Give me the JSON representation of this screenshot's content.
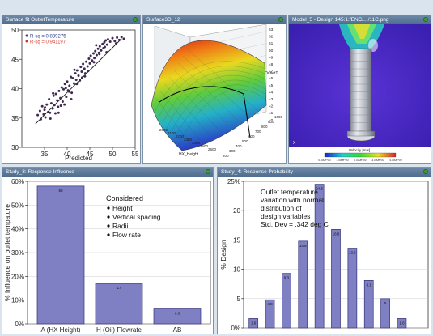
{
  "panels": {
    "scatter": {
      "title": "Surface fit OutletTemperature"
    },
    "surface": {
      "title": "Surface3D_12"
    },
    "render": {
      "title": "Model_5 - Design 145:1:/ENC/.../11C.png"
    },
    "bar1": {
      "title": "Study_3: Response Influence"
    },
    "bar2": {
      "title": "Study_4: Response Probability"
    }
  },
  "colors": {
    "bar": "#7f7fc4",
    "barEdge": "#34347a",
    "titlebar": "#5b7899",
    "background": "#d9e4ee"
  },
  "charts": {
    "scatter": {
      "legend": [
        "R-sq = 0.839275",
        "R-sq = 0.941197"
      ],
      "legendColors": [
        "#2a3c8f",
        "#d23b2b"
      ]
    },
    "surface": {
      "zticks": [
        "53",
        "52",
        "51",
        "50",
        "49",
        "48",
        "47",
        "46",
        "45",
        "44",
        "43",
        "42",
        "41",
        "40"
      ],
      "zlabel": "OutletT",
      "xticks": [
        "2000",
        "2100",
        "2200",
        "2300",
        "2400",
        "2500",
        "2600"
      ],
      "xlabel": "HX_Height",
      "yticks": [
        "200",
        "300",
        "400",
        "500",
        "600",
        "700",
        "800",
        "900",
        "1000"
      ]
    },
    "render": {
      "colorbar_label": "Velocity [m/s]",
      "colorbar_ticks": [
        "0.000e+00",
        "1.000e+00",
        "2.000e+00",
        "3.000e+00",
        "4.000e+00"
      ],
      "axis_label": "X"
    }
  },
  "chart_data": [
    {
      "type": "scatter",
      "xlabel": "Predicted",
      "ylabel": "",
      "xlim": [
        30,
        55
      ],
      "ylim": [
        30,
        50
      ],
      "xticks": [
        35,
        40,
        45,
        50,
        55
      ],
      "yticks": [
        30,
        35,
        40,
        45,
        50
      ],
      "series": [
        {
          "x": [
            33.5,
            34,
            34.2,
            34.5,
            34.8,
            35,
            35.2,
            35.5,
            35.8,
            36,
            36.2,
            36.5,
            36.8,
            37,
            37.2,
            37.5,
            37.8,
            38,
            38.2,
            38.5,
            38.8,
            39,
            39.2,
            39.5,
            39.8,
            40,
            40.2,
            40.5,
            40.8,
            41,
            41.2,
            41.5,
            41.8,
            42,
            42.2,
            42.5,
            42.8,
            43,
            43.2,
            43.5,
            43.8,
            44,
            44.2,
            44.5,
            44.8,
            45,
            45.2,
            45.5,
            45.8,
            46,
            46.2,
            46.5,
            46.8,
            47,
            47.2,
            47.5,
            47.8,
            48,
            48.2,
            48.5,
            48.8,
            49,
            49.5,
            50,
            50.5,
            51,
            51.5,
            52,
            52.5,
            36.3,
            37.4,
            38.6,
            39.7,
            40.9,
            42.1,
            43.3,
            44.6,
            45.9,
            47.1,
            48.3,
            35.1,
            36.9,
            39.4,
            41.6,
            43.9,
            46.4,
            48.7,
            50.8,
            38.1,
            40.4
          ],
          "y": [
            35.5,
            36.2,
            34.8,
            37,
            35.6,
            36.4,
            35.1,
            37.3,
            36,
            38.2,
            35.9,
            37.5,
            36.6,
            38.8,
            37.2,
            39.1,
            38,
            36.9,
            39.6,
            38.4,
            40.2,
            37.8,
            39.9,
            40.8,
            38.6,
            41.2,
            39.7,
            40.5,
            42,
            39.3,
            41.8,
            40.9,
            42.6,
            41.5,
            43.1,
            42.2,
            41.4,
            43.7,
            42.9,
            44.2,
            43.4,
            42.6,
            44.6,
            43.8,
            45.1,
            44.3,
            45.6,
            44.8,
            46,
            45.2,
            46.4,
            45.7,
            46.8,
            46.1,
            47.2,
            46.5,
            47.6,
            46.9,
            47.9,
            48.2,
            47.5,
            48.4,
            48,
            48.6,
            48.1,
            48.7,
            48.3,
            48.8,
            48.5,
            34.9,
            35.8,
            37.1,
            40.1,
            38.2,
            40.8,
            41.9,
            43,
            44.5,
            45.9,
            47.1,
            36.8,
            39.2,
            37.3,
            43.2,
            42.1,
            47.4,
            46.2,
            47.7,
            35.9,
            39.5
          ]
        }
      ],
      "fit_line": {
        "x": [
          33,
          52
        ],
        "y": [
          34,
          48.5
        ]
      }
    },
    {
      "type": "bar",
      "categories": [
        "A (HX Height)",
        "H (Oil) Flowrate",
        "AB"
      ],
      "values": [
        58,
        17,
        6.3
      ],
      "data_labels": [
        "58",
        "17",
        "6.3"
      ],
      "ylabel": "% Influence on outlet tempature",
      "ylim": [
        0,
        60
      ],
      "yticks": [
        0,
        10,
        20,
        30,
        40,
        50,
        60
      ],
      "ytick_labels": [
        "0%",
        "10%",
        "20%",
        "30%",
        "40%",
        "50%",
        "60%"
      ],
      "annotation": {
        "title": "Considered",
        "items": [
          "Height",
          "Vertical spacing",
          "Radii",
          "Flow rate"
        ]
      }
    },
    {
      "type": "bar",
      "categories": [
        "",
        "",
        "",
        "",
        "",
        "",
        "",
        "",
        "",
        "",
        ""
      ],
      "values": [
        1.6,
        4.8,
        9.3,
        14.8,
        24.5,
        16.8,
        13.6,
        8.1,
        5,
        1.6,
        0
      ],
      "data_labels": [
        "1.6",
        "4.8",
        "9.3",
        "14.8",
        "24.5",
        "16.8",
        "13.6",
        "8.1",
        "5",
        "1.6",
        ""
      ],
      "ylabel": "% Design",
      "ylim": [
        0,
        25
      ],
      "yticks": [
        0,
        5,
        10,
        15,
        20,
        25
      ],
      "ytick_labels": [
        "0%",
        "5",
        "10",
        "15",
        "20",
        "25%"
      ],
      "annotation": {
        "lines": [
          "Outlet temperature",
          "variation with normal",
          "distribution of",
          "design variables",
          "Std. Dev = .342 deg C"
        ]
      }
    }
  ]
}
